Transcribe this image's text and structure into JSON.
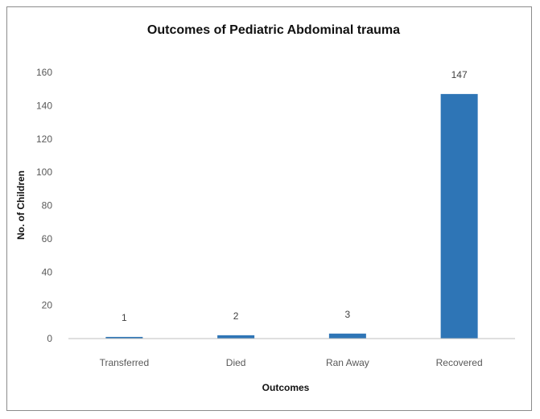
{
  "chart_data": {
    "type": "bar",
    "title": "Outcomes of Pediatric Abdominal trauma",
    "xlabel": "Outcomes",
    "ylabel": "No. of Children",
    "categories": [
      "Transferred",
      "Died",
      "Ran Away",
      "Recovered"
    ],
    "values": [
      1,
      2,
      3,
      147
    ],
    "data_labels": [
      "1",
      "2",
      "3",
      "147"
    ],
    "ylim": [
      0,
      160
    ],
    "yticks": [
      0,
      20,
      40,
      60,
      80,
      100,
      120,
      140,
      160
    ],
    "grid": false,
    "legend": "none",
    "bar_color": "#2e75b6"
  }
}
